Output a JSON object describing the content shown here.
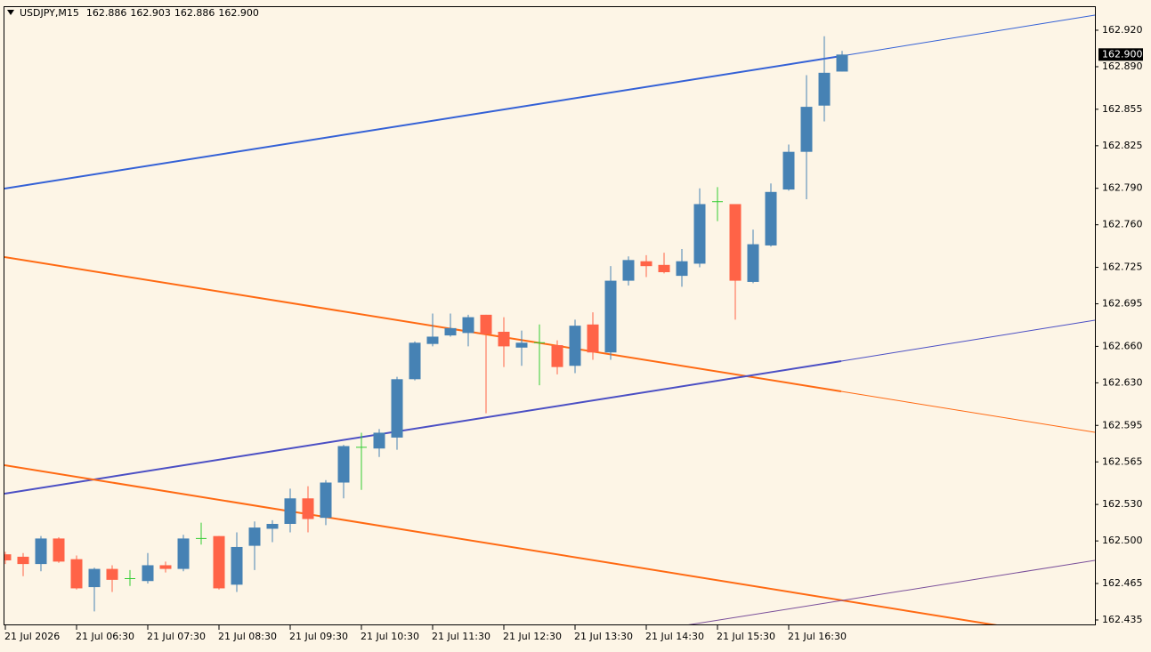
{
  "chart_data": {
    "type": "candlestick",
    "symbol": "USDJPY,M15",
    "quote_labels": [
      {
        "value": 162.886,
        "label": "162.886"
      },
      {
        "value": 162.903,
        "label": "162.903"
      },
      {
        "value": 162.886,
        "label": "162.886"
      },
      {
        "value": 162.9,
        "label": "162.900"
      }
    ],
    "categories": [
      "21 Jul 2026",
      null,
      null,
      null,
      "21 Jul 06:30",
      null,
      null,
      null,
      "21 Jul 07:30",
      null,
      null,
      null,
      "21 Jul 08:30",
      null,
      null,
      null,
      "21 Jul 09:30",
      null,
      null,
      null,
      "21 Jul 10:30",
      null,
      null,
      null,
      "21 Jul 11:30",
      null,
      null,
      null,
      "21 Jul 12:30",
      null,
      null,
      null,
      "21 Jul 13:30",
      null,
      null,
      null,
      "21 Jul 14:30",
      null,
      null,
      null,
      "21 Jul 15:30",
      null,
      null,
      null,
      "21 Jul 16:30",
      null,
      null,
      null
    ],
    "open": [
      162.489,
      162.487,
      162.481,
      162.502,
      162.485,
      162.462,
      162.477,
      162.469,
      162.467,
      162.48,
      162.477,
      162.502,
      162.504,
      162.464,
      162.496,
      162.51,
      162.514,
      162.535,
      162.519,
      162.548,
      162.577,
      162.576,
      162.585,
      162.633,
      162.662,
      162.669,
      162.671,
      162.686,
      162.672,
      162.659,
      162.663,
      162.661,
      162.644,
      162.678,
      162.655,
      162.714,
      162.73,
      162.727,
      162.718,
      162.728,
      162.779,
      162.777,
      162.713,
      162.743,
      162.789,
      162.82,
      162.858,
      162.886
    ],
    "high": [
      162.491,
      162.49,
      162.504,
      162.503,
      162.488,
      162.478,
      162.48,
      162.476,
      162.49,
      162.483,
      162.505,
      162.515,
      162.504,
      162.507,
      162.516,
      162.517,
      162.543,
      162.545,
      162.55,
      162.579,
      162.589,
      162.592,
      162.635,
      162.664,
      162.687,
      162.687,
      162.686,
      162.686,
      162.684,
      162.673,
      162.678,
      162.665,
      162.682,
      162.688,
      162.726,
      162.734,
      162.735,
      162.737,
      162.74,
      162.79,
      162.791,
      162.777,
      162.756,
      162.794,
      162.826,
      162.883,
      162.915,
      162.903
    ],
    "low": [
      162.481,
      162.471,
      162.475,
      162.482,
      162.46,
      162.442,
      162.458,
      162.463,
      162.465,
      162.474,
      162.475,
      162.497,
      162.46,
      162.458,
      162.476,
      162.499,
      162.507,
      162.507,
      162.513,
      162.535,
      162.542,
      162.569,
      162.575,
      162.632,
      162.66,
      162.668,
      162.66,
      162.605,
      162.643,
      162.644,
      162.628,
      162.637,
      162.638,
      162.649,
      162.649,
      162.71,
      162.717,
      162.72,
      162.709,
      162.725,
      162.763,
      162.682,
      162.712,
      162.742,
      162.788,
      162.781,
      162.845,
      162.886
    ],
    "close": [
      162.484,
      162.481,
      162.502,
      162.483,
      162.461,
      162.477,
      162.468,
      162.469,
      162.48,
      162.477,
      162.502,
      162.502,
      162.461,
      162.495,
      162.511,
      162.514,
      162.535,
      162.518,
      162.548,
      162.578,
      162.577,
      162.589,
      162.633,
      162.663,
      162.668,
      162.675,
      162.684,
      162.67,
      162.66,
      162.663,
      162.663,
      162.643,
      162.677,
      162.655,
      162.714,
      162.731,
      162.726,
      162.721,
      162.73,
      162.777,
      162.779,
      162.714,
      162.744,
      162.787,
      162.82,
      162.857,
      162.885,
      162.9
    ],
    "up_color": "#4682b4",
    "down_color": "#ff6347",
    "doji_color": "#32cd32",
    "ylim": [
      162.4306,
      162.939
    ],
    "yticks": [
      {
        "value": 162.92,
        "label": "162.920"
      },
      {
        "value": 162.89,
        "label": "162.890"
      },
      {
        "value": 162.855,
        "label": "162.855"
      },
      {
        "value": 162.825,
        "label": "162.825"
      },
      {
        "value": 162.79,
        "label": "162.790"
      },
      {
        "value": 162.76,
        "label": "162.760"
      },
      {
        "value": 162.725,
        "label": "162.725"
      },
      {
        "value": 162.695,
        "label": "162.695"
      },
      {
        "value": 162.66,
        "label": "162.660"
      },
      {
        "value": 162.63,
        "label": "162.630"
      },
      {
        "value": 162.595,
        "label": "162.595"
      },
      {
        "value": 162.565,
        "label": "162.565"
      },
      {
        "value": 162.53,
        "label": "162.530"
      },
      {
        "value": 162.5,
        "label": "162.500"
      },
      {
        "value": 162.465,
        "label": "162.465"
      },
      {
        "value": 162.435,
        "label": "162.435"
      }
    ],
    "last_price": {
      "value": 162.9,
      "label": "162.900"
    }
  }
}
